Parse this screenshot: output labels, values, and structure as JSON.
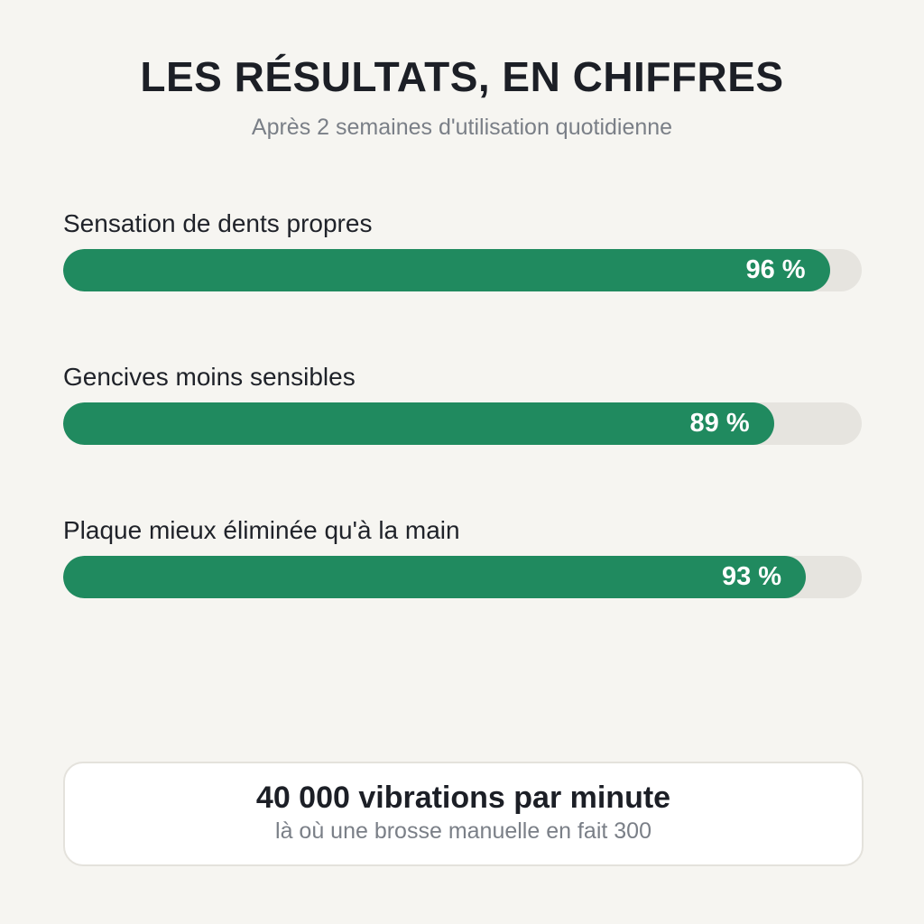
{
  "header": {
    "title": "LES RÉSULTATS, EN CHIFFRES",
    "subtitle": "Après 2 semaines d'utilisation quotidienne"
  },
  "stats": [
    {
      "label": "Sensation de dents propres",
      "value_text": "96 %",
      "value": 96
    },
    {
      "label": "Gencives moins sensibles",
      "value_text": "89 %",
      "value": 89
    },
    {
      "label": "Plaque mieux éliminée qu'à la main",
      "value_text": "93 %",
      "value": 93
    }
  ],
  "callout": {
    "headline": "40 000 vibrations par minute",
    "subtext": "là où une brosse manuelle en fait 300"
  },
  "colors": {
    "background": "#f6f5f1",
    "bar_fill": "#208a5f",
    "bar_track": "#e6e4df",
    "title": "#1c1f26",
    "muted_text": "#7a7f87"
  }
}
